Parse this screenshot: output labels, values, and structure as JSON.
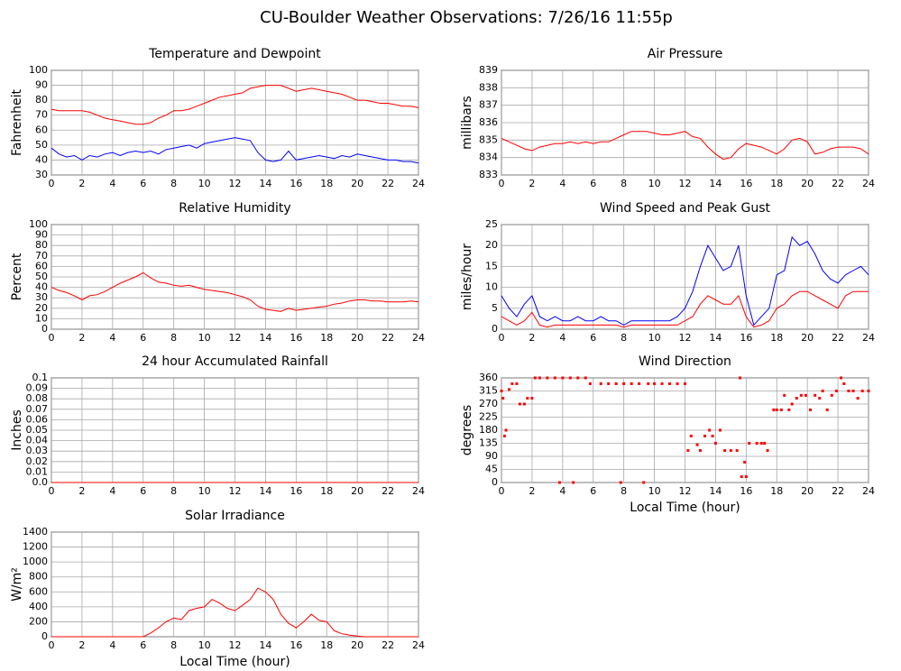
{
  "title": "CU-Boulder Weather Observations: 7/26/16 11:55p",
  "chart_data": [
    {
      "type": "line",
      "title": "Temperature and Dewpoint",
      "ylabel": "Fahrenheit",
      "x": [
        0,
        0.5,
        1,
        1.5,
        2,
        2.5,
        3,
        3.5,
        4,
        4.5,
        5,
        5.5,
        6,
        6.5,
        7,
        7.5,
        8,
        8.5,
        9,
        9.5,
        10,
        10.5,
        11,
        11.5,
        12,
        12.5,
        13,
        13.5,
        14,
        14.5,
        15,
        15.5,
        16,
        16.5,
        17,
        17.5,
        18,
        18.5,
        19,
        19.5,
        20,
        20.5,
        21,
        21.5,
        22,
        22.5,
        23,
        23.5,
        24
      ],
      "series": [
        {
          "color": "#ff0000",
          "values": [
            74,
            73,
            73,
            73,
            73,
            72,
            70,
            68,
            67,
            66,
            65,
            64,
            64,
            65,
            68,
            70,
            73,
            73,
            74,
            76,
            78,
            80,
            82,
            83,
            84,
            85,
            88,
            89,
            90,
            90,
            90,
            88,
            86,
            87,
            88,
            87,
            86,
            85,
            84,
            82,
            80,
            80,
            79,
            78,
            78,
            77,
            76,
            76,
            75
          ]
        },
        {
          "color": "#0000ff",
          "values": [
            48,
            44,
            42,
            43,
            40,
            43,
            42,
            44,
            45,
            43,
            45,
            46,
            45,
            46,
            44,
            47,
            48,
            49,
            50,
            48,
            51,
            52,
            53,
            54,
            55,
            54,
            53,
            45,
            40,
            39,
            40,
            46,
            40,
            41,
            42,
            43,
            42,
            41,
            43,
            42,
            44,
            43,
            42,
            41,
            40,
            40,
            39,
            39,
            38
          ]
        }
      ],
      "xlim": [
        0,
        24
      ],
      "xticks": [
        0,
        2,
        4,
        6,
        8,
        10,
        12,
        14,
        16,
        18,
        20,
        22,
        24
      ],
      "ylim": [
        30,
        100
      ],
      "yticks": [
        30,
        40,
        50,
        60,
        70,
        80,
        90,
        100
      ],
      "grid": true
    },
    {
      "type": "line",
      "title": "Air Pressure",
      "ylabel": "millibars",
      "x": [
        0,
        0.5,
        1,
        1.5,
        2,
        2.5,
        3,
        3.5,
        4,
        4.5,
        5,
        5.5,
        6,
        6.5,
        7,
        7.5,
        8,
        8.5,
        9,
        9.5,
        10,
        10.5,
        11,
        11.5,
        12,
        12.5,
        13,
        13.5,
        14,
        14.5,
        15,
        15.5,
        16,
        16.5,
        17,
        17.5,
        18,
        18.5,
        19,
        19.5,
        20,
        20.5,
        21,
        21.5,
        22,
        22.5,
        23,
        23.5,
        24
      ],
      "series": [
        {
          "color": "#ff0000",
          "values": [
            835.1,
            834.9,
            834.7,
            834.5,
            834.4,
            834.6,
            834.7,
            834.8,
            834.8,
            834.9,
            834.8,
            834.9,
            834.8,
            834.9,
            834.9,
            835.1,
            835.3,
            835.5,
            835.5,
            835.5,
            835.4,
            835.3,
            835.3,
            835.4,
            835.5,
            835.2,
            835.1,
            834.6,
            834.2,
            833.9,
            834.0,
            834.5,
            834.8,
            834.7,
            834.6,
            834.4,
            834.2,
            834.5,
            835.0,
            835.1,
            834.9,
            834.2,
            834.3,
            834.5,
            834.6,
            834.6,
            834.6,
            834.5,
            834.2
          ]
        }
      ],
      "xlim": [
        0,
        24
      ],
      "xticks": [
        0,
        2,
        4,
        6,
        8,
        10,
        12,
        14,
        16,
        18,
        20,
        22,
        24
      ],
      "ylim": [
        833,
        839
      ],
      "yticks": [
        833,
        834,
        835,
        836,
        837,
        838,
        839
      ],
      "grid": true
    },
    {
      "type": "line",
      "title": "Relative Humidity",
      "ylabel": "Percent",
      "x": [
        0,
        0.5,
        1,
        1.5,
        2,
        2.5,
        3,
        3.5,
        4,
        4.5,
        5,
        5.5,
        6,
        6.5,
        7,
        7.5,
        8,
        8.5,
        9,
        9.5,
        10,
        10.5,
        11,
        11.5,
        12,
        12.5,
        13,
        13.5,
        14,
        14.5,
        15,
        15.5,
        16,
        16.5,
        17,
        17.5,
        18,
        18.5,
        19,
        19.5,
        20,
        20.5,
        21,
        21.5,
        22,
        22.5,
        23,
        23.5,
        24
      ],
      "series": [
        {
          "color": "#ff0000",
          "values": [
            40,
            37,
            35,
            32,
            28,
            32,
            33,
            36,
            40,
            44,
            47,
            50,
            54,
            49,
            45,
            44,
            42,
            41,
            42,
            40,
            38,
            37,
            36,
            35,
            33,
            31,
            28,
            22,
            19,
            18,
            17,
            20,
            18,
            19,
            20,
            21,
            22,
            24,
            25,
            27,
            28,
            28,
            27,
            27,
            26,
            26,
            26,
            27,
            26
          ]
        }
      ],
      "xlim": [
        0,
        24
      ],
      "xticks": [
        0,
        2,
        4,
        6,
        8,
        10,
        12,
        14,
        16,
        18,
        20,
        22,
        24
      ],
      "ylim": [
        0,
        100
      ],
      "yticks": [
        0,
        10,
        20,
        30,
        40,
        50,
        60,
        70,
        80,
        90,
        100
      ],
      "grid": true
    },
    {
      "type": "line",
      "title": "Wind Speed and Peak Gust",
      "ylabel": "miles/hour",
      "x": [
        0,
        0.5,
        1,
        1.5,
        2,
        2.5,
        3,
        3.5,
        4,
        4.5,
        5,
        5.5,
        6,
        6.5,
        7,
        7.5,
        8,
        8.5,
        9,
        9.5,
        10,
        10.5,
        11,
        11.5,
        12,
        12.5,
        13,
        13.5,
        14,
        14.5,
        15,
        15.5,
        16,
        16.5,
        17,
        17.5,
        18,
        18.5,
        19,
        19.5,
        20,
        20.5,
        21,
        21.5,
        22,
        22.5,
        23,
        23.5,
        24
      ],
      "series": [
        {
          "color": "#0000ff",
          "values": [
            8,
            5,
            3,
            6,
            8,
            3,
            2,
            3,
            2,
            2,
            3,
            2,
            2,
            3,
            2,
            2,
            1,
            2,
            2,
            2,
            2,
            2,
            2,
            3,
            5,
            9,
            15,
            20,
            17,
            14,
            15,
            20,
            8,
            1,
            3,
            5,
            13,
            14,
            22,
            20,
            21,
            18,
            14,
            12,
            11,
            13,
            14,
            15,
            13
          ]
        },
        {
          "color": "#ff0000",
          "values": [
            3,
            2,
            1,
            2,
            4,
            1,
            0.5,
            1,
            1,
            1,
            1,
            1,
            1,
            1,
            1,
            1,
            0.5,
            1,
            1,
            1,
            1,
            1,
            1,
            1,
            2,
            3,
            6,
            8,
            7,
            6,
            6,
            8,
            3,
            0.5,
            1,
            2,
            5,
            6,
            8,
            9,
            9,
            8,
            7,
            6,
            5,
            8,
            9,
            9,
            9
          ]
        }
      ],
      "xlim": [
        0,
        24
      ],
      "xticks": [
        0,
        2,
        4,
        6,
        8,
        10,
        12,
        14,
        16,
        18,
        20,
        22,
        24
      ],
      "ylim": [
        0,
        25
      ],
      "yticks": [
        0,
        5,
        10,
        15,
        20,
        25
      ],
      "grid": true
    },
    {
      "type": "line",
      "title": "24 hour Accumulated Rainfall",
      "ylabel": "Inches",
      "x": [
        0,
        24
      ],
      "series": [
        {
          "color": "#ff0000",
          "values": [
            0,
            0
          ]
        }
      ],
      "xlim": [
        0,
        24
      ],
      "xticks": [
        0,
        2,
        4,
        6,
        8,
        10,
        12,
        14,
        16,
        18,
        20,
        22,
        24
      ],
      "ylim": [
        0,
        0.1
      ],
      "yticks": [
        {
          "value": 0,
          "label": "0.0"
        },
        0.01,
        0.02,
        0.03,
        0.04,
        0.05,
        0.06,
        0.07,
        0.08,
        0.09,
        0.1
      ],
      "grid": true
    },
    {
      "type": "scatter",
      "title": "Wind Direction",
      "ylabel": "degrees",
      "xlabel": "Local Time (hour)",
      "color": "#ff0000",
      "x": [
        0,
        0.1,
        0.2,
        0.3,
        0.5,
        0.7,
        1,
        1.2,
        1.5,
        1.7,
        2,
        2.2,
        2.5,
        3,
        3.5,
        3.8,
        4,
        4.5,
        4.7,
        5,
        5.5,
        5.8,
        6.5,
        7,
        7.5,
        7.8,
        8,
        8.5,
        9,
        9.3,
        9.6,
        10,
        10.5,
        11,
        11.5,
        12,
        12.2,
        12.4,
        12.8,
        13,
        13.3,
        13.6,
        13.8,
        14,
        14.3,
        14.6,
        15,
        15.4,
        15.6,
        15.7,
        15.9,
        16,
        16.2,
        16.7,
        17,
        17.2,
        17.4,
        17.8,
        18,
        18.3,
        18.5,
        18.8,
        19,
        19.3,
        19.6,
        19.9,
        20.2,
        20.5,
        20.8,
        21,
        21.3,
        21.6,
        21.9,
        22.2,
        22.4,
        22.7,
        23,
        23.3,
        23.6,
        24
      ],
      "values": [
        315,
        290,
        160,
        180,
        320,
        340,
        340,
        270,
        270,
        290,
        290,
        360,
        360,
        360,
        360,
        0,
        360,
        360,
        0,
        360,
        360,
        340,
        340,
        340,
        340,
        0,
        340,
        340,
        340,
        0,
        340,
        340,
        340,
        340,
        340,
        340,
        110,
        160,
        130,
        110,
        160,
        180,
        160,
        135,
        180,
        110,
        110,
        110,
        360,
        20,
        70,
        20,
        135,
        135,
        135,
        135,
        110,
        250,
        250,
        250,
        300,
        250,
        270,
        290,
        300,
        300,
        250,
        300,
        290,
        315,
        250,
        300,
        315,
        360,
        340,
        315,
        315,
        290,
        315,
        315
      ],
      "xlim": [
        0,
        24
      ],
      "xticks": [
        0,
        2,
        4,
        6,
        8,
        10,
        12,
        14,
        16,
        18,
        20,
        22,
        24
      ],
      "ylim": [
        0,
        360
      ],
      "yticks": [
        0,
        45,
        90,
        135,
        180,
        225,
        270,
        315,
        360
      ],
      "grid": true
    },
    {
      "type": "line",
      "title": "Solar Irradiance",
      "ylabel": "W/m²",
      "xlabel": "Local Time (hour)",
      "x": [
        0,
        0.5,
        1,
        1.5,
        2,
        2.5,
        3,
        3.5,
        4,
        4.5,
        5,
        5.5,
        6,
        6.5,
        7,
        7.5,
        8,
        8.5,
        9,
        9.5,
        10,
        10.5,
        11,
        11.5,
        12,
        12.5,
        13,
        13.5,
        14,
        14.5,
        15,
        15.5,
        16,
        16.5,
        17,
        17.5,
        18,
        18.5,
        19,
        19.5,
        20,
        20.5,
        21,
        21.5,
        22,
        22.5,
        23,
        23.5,
        24
      ],
      "series": [
        {
          "color": "#ff0000",
          "values": [
            0,
            0,
            0,
            0,
            0,
            0,
            0,
            0,
            0,
            0,
            0,
            0,
            0,
            50,
            120,
            200,
            250,
            230,
            350,
            380,
            400,
            500,
            450,
            380,
            350,
            420,
            500,
            650,
            600,
            500,
            300,
            180,
            120,
            200,
            300,
            220,
            200,
            80,
            40,
            20,
            10,
            0,
            0,
            0,
            0,
            0,
            0,
            0,
            0
          ]
        }
      ],
      "xlim": [
        0,
        24
      ],
      "xticks": [
        0,
        2,
        4,
        6,
        8,
        10,
        12,
        14,
        16,
        18,
        20,
        22,
        24
      ],
      "ylim": [
        0,
        1400
      ],
      "yticks": [
        0,
        200,
        400,
        600,
        800,
        1000,
        1200,
        1400
      ],
      "grid": true
    }
  ]
}
